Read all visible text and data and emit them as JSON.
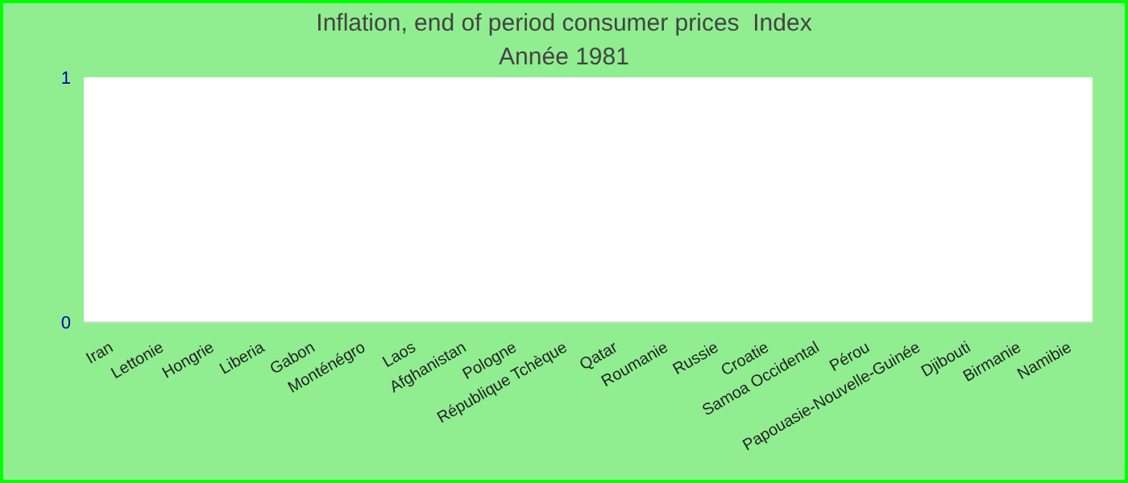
{
  "chart_data": {
    "type": "bar",
    "title": "Inflation, end of period consumer prices  Index",
    "subtitle": "Année 1981",
    "categories": [
      "Iran",
      "Lettonie",
      "Hongrie",
      "Liberia",
      "Gabon",
      "Monténégro",
      "Laos",
      "Afghanistan",
      "Pologne",
      "République Tchèque",
      "Qatar",
      "Roumanie",
      "Russie",
      "Croatie",
      "Samoa Occidental",
      "Pérou",
      "Papouasie-Nouvelle-Guinée",
      "Djibouti",
      "Birmanie",
      "Namibie"
    ],
    "values": [
      null,
      null,
      null,
      null,
      null,
      null,
      null,
      null,
      null,
      null,
      null,
      null,
      null,
      null,
      null,
      null,
      null,
      null,
      null,
      null
    ],
    "ylim": [
      0,
      1
    ],
    "yticks": [
      0,
      1
    ],
    "grid": false
  }
}
